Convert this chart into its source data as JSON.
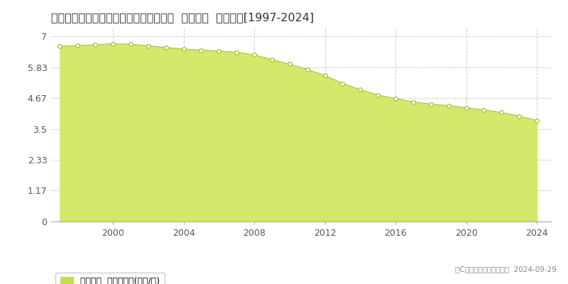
{
  "title": "鳥取県鳥取市上味野字上り立７４番１外  基準地価  地価推移[1997-2024]",
  "years": [
    1997,
    1998,
    1999,
    2000,
    2001,
    2002,
    2003,
    2004,
    2005,
    2006,
    2007,
    2008,
    2009,
    2010,
    2011,
    2012,
    2013,
    2014,
    2015,
    2016,
    2017,
    2018,
    2019,
    2020,
    2021,
    2022,
    2023,
    2024
  ],
  "values": [
    6.62,
    6.65,
    6.68,
    6.72,
    6.7,
    6.64,
    6.58,
    6.52,
    6.48,
    6.44,
    6.4,
    6.3,
    6.12,
    5.95,
    5.75,
    5.52,
    5.22,
    4.98,
    4.78,
    4.65,
    4.52,
    4.44,
    4.38,
    4.3,
    4.22,
    4.12,
    3.98,
    3.82
  ],
  "yticks": [
    0,
    1.17,
    2.33,
    3.5,
    4.67,
    5.83,
    7
  ],
  "ytick_labels": [
    "0",
    "1.17",
    "2.33",
    "3.5",
    "4.67",
    "5.83",
    "7"
  ],
  "xticks": [
    2000,
    2004,
    2008,
    2012,
    2016,
    2020,
    2024
  ],
  "xtick_labels": [
    "2000",
    "2004",
    "2008",
    "2012",
    "2016",
    "2020",
    "2024"
  ],
  "ylim": [
    0,
    7.3
  ],
  "xlim": [
    1996.5,
    2024.8
  ],
  "fill_color": "#d4e96b",
  "line_color": "#b8cc40",
  "marker_color": "#ffffff",
  "marker_edge_color": "#b0c435",
  "bg_color": "#ffffff",
  "grid_color": "#cccccc",
  "legend_label": "基準地価  平均坪単価(万円/坪)",
  "legend_color": "#c8dc50",
  "copyright_text": "（C）土地価格ドットコム  2024-09-29",
  "title_fontsize": 11.5,
  "axis_fontsize": 9,
  "legend_fontsize": 9
}
